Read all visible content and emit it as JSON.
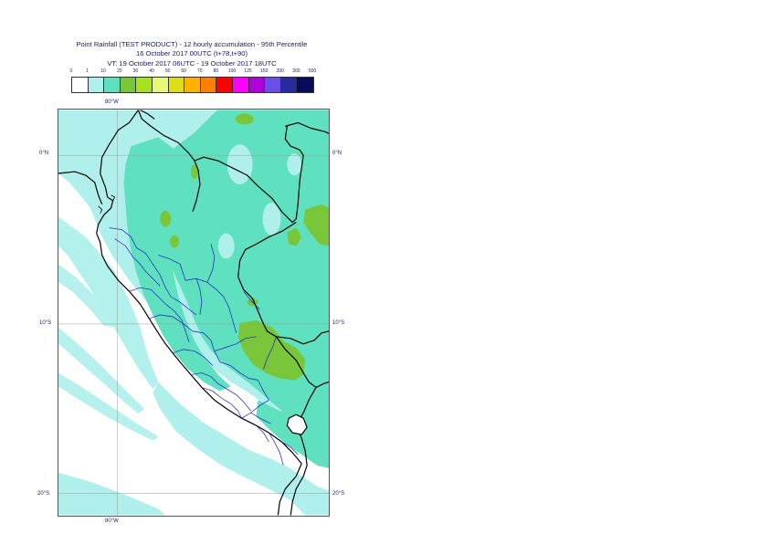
{
  "title": {
    "line1": "Point Rainfall (TEST PRODUCT) - 12 hourly accumulation - 95th Percentile",
    "line2": "16 October 2017 00UTC (t+78,t+90)",
    "line3": "VT: 19 October 2017 06UTC - 19 October 2017 18UTC"
  },
  "legend": {
    "thresholds": [
      "0",
      "1",
      "10",
      "20",
      "30",
      "40",
      "50",
      "60",
      "70",
      "80",
      "100",
      "125",
      "150",
      "200",
      "300",
      "500"
    ],
    "colors": [
      "#ffffff",
      "#aff0ec",
      "#5fe0be",
      "#7ac63a",
      "#a6e31f",
      "#e7fa78",
      "#dede16",
      "#ffb300",
      "#ff8000",
      "#ff0000",
      "#ff00ff",
      "#b000d8",
      "#6a4ee8",
      "#2a2aa0",
      "#0a0a5a"
    ]
  },
  "axes": {
    "lon_top": "80°W",
    "lon_bottom": "80°W",
    "lat_right": [
      "0°N",
      "10°S",
      "20°S"
    ],
    "lat_left": [
      "0°N",
      "10°S",
      "20°S"
    ]
  },
  "map": {
    "region": "Peru and surroundings",
    "lon_range": [
      -83.5,
      -67.5
    ],
    "lat_range": [
      2.5,
      -21.5
    ],
    "gridlines": true,
    "country_border_color": "#000000",
    "region_border_color": "#1a1ad0",
    "sea_color": "#ffffff"
  }
}
